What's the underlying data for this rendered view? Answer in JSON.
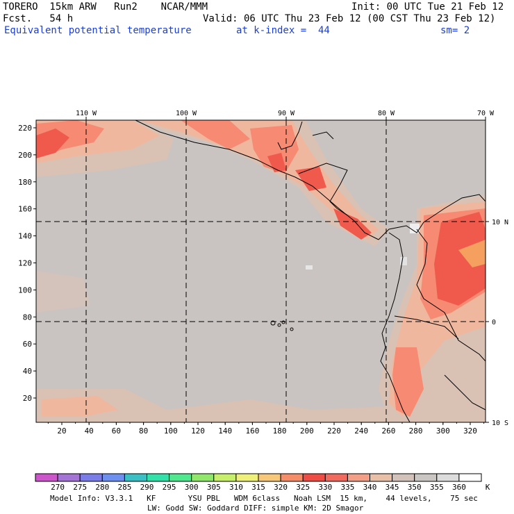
{
  "header": {
    "model": "TORERO  15km ARW   Run2    NCAR/MMM",
    "init": "Init: 00 UTC Tue 21 Feb 12",
    "fcst": "Fcst.   54 h",
    "valid": "Valid: 06 UTC Thu 23 Feb 12 (00 CST Thu 23 Feb 12)",
    "field": "Equivalent potential temperature",
    "kindex": "at k-index =  44",
    "sm": "sm= 2"
  },
  "map": {
    "top_labels": [
      "110 W",
      "100 W",
      "90 W",
      "80 W",
      "70 W"
    ],
    "right_labels": [
      "10 N",
      "0",
      "10 S"
    ],
    "y_ticks": [
      "220",
      "200",
      "180",
      "160",
      "140",
      "120",
      "100",
      "80",
      "60",
      "40",
      "20"
    ],
    "x_ticks": [
      "20",
      "40",
      "60",
      "80",
      "100",
      "120",
      "140",
      "160",
      "180",
      "200",
      "220",
      "240",
      "260",
      "280",
      "300",
      "320"
    ],
    "colors": {
      "ocean": "#c9c4c1",
      "mid": "#d9c1b3",
      "warm": "#f0b79f",
      "warmer": "#f68a72",
      "hot": "#ef5a4d"
    }
  },
  "colorbar": {
    "labels": [
      "270",
      "275",
      "280",
      "285",
      "290",
      "295",
      "300",
      "305",
      "310",
      "315",
      "320",
      "325",
      "330",
      "335",
      "340",
      "345",
      "350",
      "355",
      "360"
    ],
    "unit": "K",
    "colors": [
      "#cc55cc",
      "#a373d6",
      "#7a7de8",
      "#6c8ff0",
      "#3ac0c4",
      "#33e0a8",
      "#4fe88f",
      "#8fe86a",
      "#c8ef6a",
      "#eef07a",
      "#f8c87a",
      "#f58e68",
      "#ee4c44",
      "#f06a5e",
      "#f39f88",
      "#e8c0a8",
      "#d2c2b9",
      "#c9c6c4",
      "#dcdcdc",
      "#ffffff"
    ]
  },
  "footer": {
    "line1": "Model Info: V3.3.1   KF       YSU PBL   WDM 6class   Noah LSM  15 km,    44 levels,    75 sec",
    "line2": "LW: Godd SW: Goddard DIFF: simple KM: 2D Smagor"
  }
}
